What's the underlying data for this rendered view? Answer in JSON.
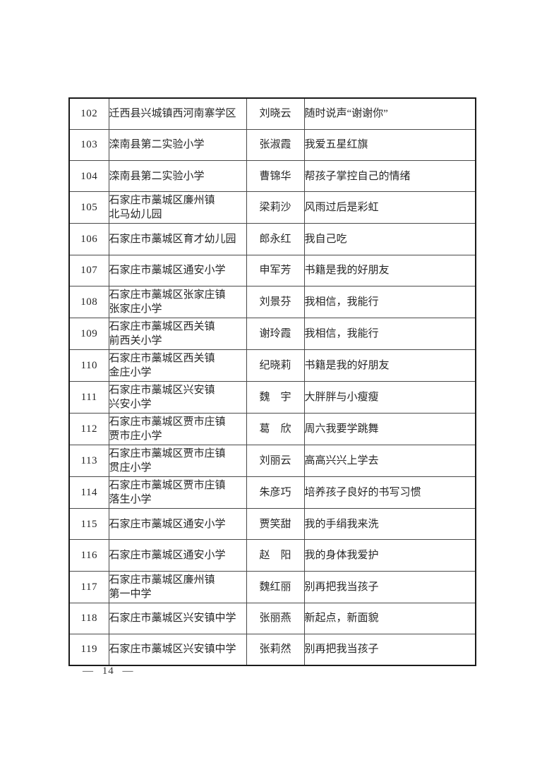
{
  "document": {
    "kind": "scanned-roster-table-page",
    "background_color": "#ffffff",
    "text_color": "#262626",
    "border_inner_color": "#4a4a4a",
    "border_outer_color": "#1a1a1a"
  },
  "footer": {
    "page_label": "— 14 —"
  },
  "table": {
    "rows": [
      {
        "no": "102",
        "school": "迁西县兴城镇西河南寨学区",
        "name": "刘晓云",
        "slogan": "随时说声“谢谢你”"
      },
      {
        "no": "103",
        "school": "滦南县第二实验小学",
        "name": "张淑霞",
        "slogan": "我爱五星红旗"
      },
      {
        "no": "104",
        "school": "滦南县第二实验小学",
        "name": "曹锦华",
        "slogan": "帮孩子掌控自己的情绪"
      },
      {
        "no": "105",
        "school": "石家庄市藁城区廉州镇\n北马幼儿园",
        "name": "梁莉沙",
        "slogan": "风雨过后是彩虹"
      },
      {
        "no": "106",
        "school": "石家庄市藁城区育才幼儿园",
        "name": "郎永红",
        "slogan": "我自己吃"
      },
      {
        "no": "107",
        "school": "石家庄市藁城区通安小学",
        "name": "申军芳",
        "slogan": "书籍是我的好朋友"
      },
      {
        "no": "108",
        "school": "石家庄市藁城区张家庄镇\n张家庄小学",
        "name": "刘景芬",
        "slogan": "我相信，我能行"
      },
      {
        "no": "109",
        "school": "石家庄市藁城区西关镇\n前西关小学",
        "name": "谢玲霞",
        "slogan": "我相信，我能行"
      },
      {
        "no": "110",
        "school": "石家庄市藁城区西关镇\n金庄小学",
        "name": "纪晓莉",
        "slogan": "书籍是我的好朋友"
      },
      {
        "no": "111",
        "school": "石家庄市藁城区兴安镇\n兴安小学",
        "name": "魏　宇",
        "slogan": "大胖胖与小瘦瘦"
      },
      {
        "no": "112",
        "school": "石家庄市藁城区贾市庄镇\n贾市庄小学",
        "name": "葛　欣",
        "slogan": "周六我要学跳舞"
      },
      {
        "no": "113",
        "school": "石家庄市藁城区贾市庄镇\n贯庄小学",
        "name": "刘丽云",
        "slogan": "高高兴兴上学去"
      },
      {
        "no": "114",
        "school": "石家庄市藁城区贾市庄镇\n落生小学",
        "name": "朱彦巧",
        "slogan": "培养孩子良好的书写习惯"
      },
      {
        "no": "115",
        "school": "石家庄市藁城区通安小学",
        "name": "贾笑甜",
        "slogan": "我的手绢我来洗"
      },
      {
        "no": "116",
        "school": "石家庄市藁城区通安小学",
        "name": "赵　阳",
        "slogan": "我的身体我爱护"
      },
      {
        "no": "117",
        "school": "石家庄市藁城区廉州镇\n第一中学",
        "name": "魏红丽",
        "slogan": "别再把我当孩子"
      },
      {
        "no": "118",
        "school": "石家庄市藁城区兴安镇中学",
        "name": "张丽燕",
        "slogan": "新起点，新面貌"
      },
      {
        "no": "119",
        "school": "石家庄市藁城区兴安镇中学",
        "name": "张莉然",
        "slogan": "别再把我当孩子"
      }
    ]
  }
}
